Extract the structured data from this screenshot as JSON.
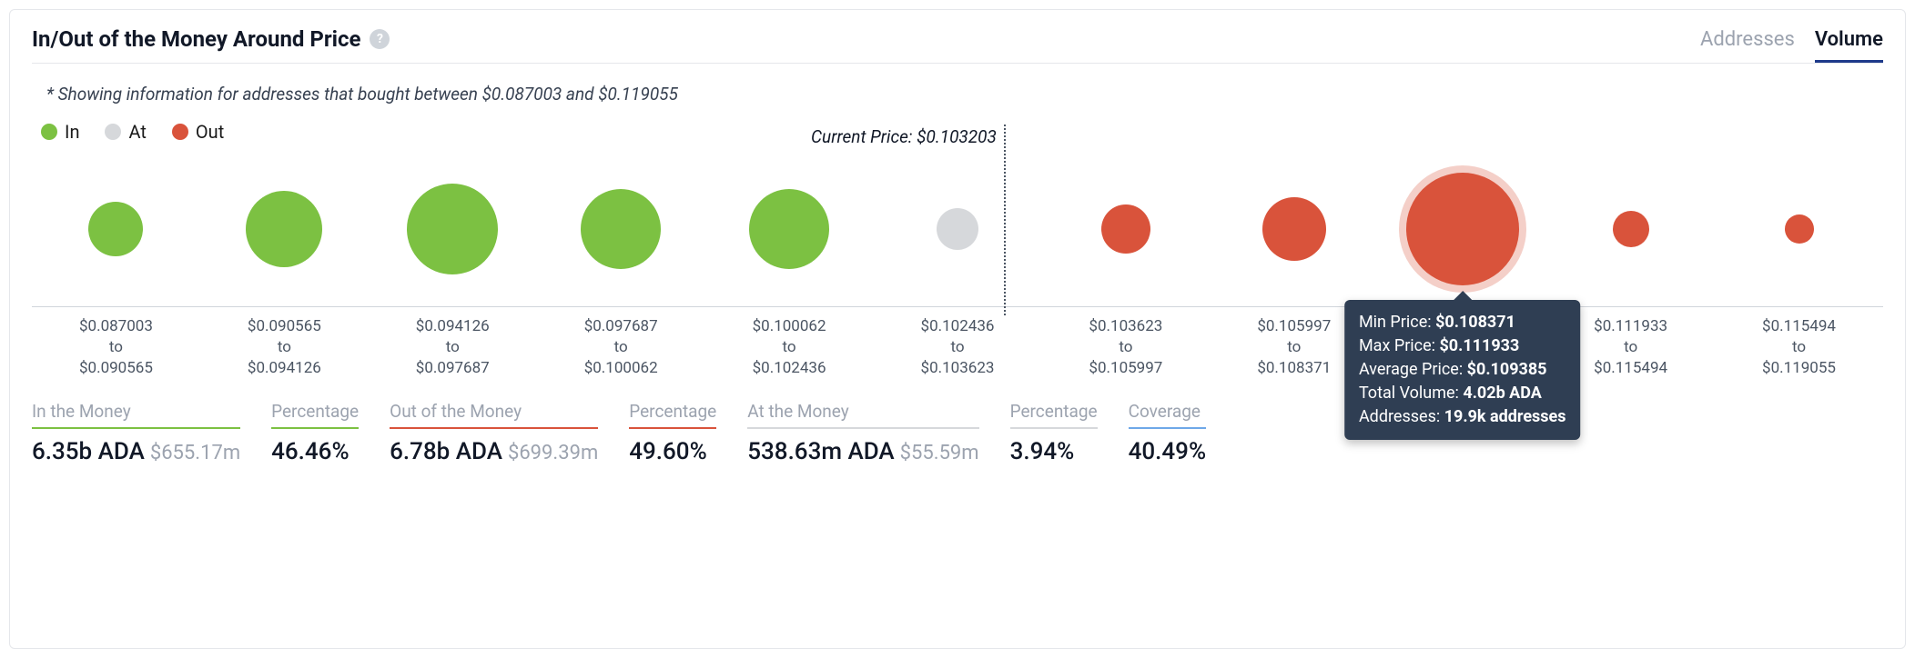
{
  "title": "In/Out of the Money Around Price",
  "tabs": {
    "inactive": "Addresses",
    "active": "Volume"
  },
  "subtitle": "* Showing information for addresses that bought between $0.087003 and $0.119055",
  "legend": {
    "in": {
      "label": "In",
      "color": "#7cc142"
    },
    "at": {
      "label": "At",
      "color": "#d6d8db"
    },
    "out": {
      "label": "Out",
      "color": "#d9533b"
    }
  },
  "current_price_label": "Current Price: $0.103203",
  "colors": {
    "in": "#7cc142",
    "at": "#d6d8db",
    "out": "#d9533b",
    "tooltip_bg": "#2f3e53",
    "grid": "#d1d5db"
  },
  "chart": {
    "divider_after_index": 4,
    "current_price_x_pct": 52.5,
    "bubbles": [
      {
        "range_from": "$0.087003",
        "range_to": "$0.090565",
        "cat": "in",
        "size": 60,
        "highlight": false
      },
      {
        "range_from": "$0.090565",
        "range_to": "$0.094126",
        "cat": "in",
        "size": 84,
        "highlight": false
      },
      {
        "range_from": "$0.094126",
        "range_to": "$0.097687",
        "cat": "in",
        "size": 100,
        "highlight": false
      },
      {
        "range_from": "$0.097687",
        "range_to": "$0.100062",
        "cat": "in",
        "size": 88,
        "highlight": false
      },
      {
        "range_from": "$0.100062",
        "range_to": "$0.102436",
        "cat": "in",
        "size": 88,
        "highlight": false
      },
      {
        "range_from": "$0.102436",
        "range_to": "$0.103623",
        "cat": "at",
        "size": 46,
        "highlight": false
      },
      {
        "range_from": "$0.103623",
        "range_to": "$0.105997",
        "cat": "out",
        "size": 54,
        "highlight": false
      },
      {
        "range_from": "$0.105997",
        "range_to": "$0.108371",
        "cat": "out",
        "size": 70,
        "highlight": false
      },
      {
        "range_from": "$0.108371",
        "range_to": "$0.111933",
        "cat": "out",
        "size": 124,
        "highlight": true
      },
      {
        "range_from": "$0.111933",
        "range_to": "$0.115494",
        "cat": "out",
        "size": 40,
        "highlight": false
      },
      {
        "range_from": "$0.115494",
        "range_to": "$0.119055",
        "cat": "out",
        "size": 32,
        "highlight": false
      }
    ]
  },
  "tooltip": {
    "bubble_index": 8,
    "rows": [
      {
        "label": "Min Price: ",
        "value": "$0.108371"
      },
      {
        "label": "Max Price: ",
        "value": "$0.111933"
      },
      {
        "label": "Average Price: ",
        "value": "$0.109385"
      },
      {
        "label": "Total Volume: ",
        "value": "4.02b ADA"
      },
      {
        "label": "Addresses: ",
        "value": "19.9k addresses"
      }
    ]
  },
  "summary": [
    {
      "label": "In the Money",
      "value": "6.35b ADA",
      "sub": "$655.17m",
      "underline": "#7cc142"
    },
    {
      "label": "Percentage",
      "value": "46.46%",
      "sub": "",
      "underline": "#7cc142"
    },
    {
      "label": "Out of the Money",
      "value": "6.78b ADA",
      "sub": "$699.39m",
      "underline": "#d9533b"
    },
    {
      "label": "Percentage",
      "value": "49.60%",
      "sub": "",
      "underline": "#d9533b"
    },
    {
      "label": "At the Money",
      "value": "538.63m ADA",
      "sub": "$55.59m",
      "underline": "#d6d8db"
    },
    {
      "label": "Percentage",
      "value": "3.94%",
      "sub": "",
      "underline": "#d6d8db"
    },
    {
      "label": "Coverage",
      "value": "40.49%",
      "sub": "",
      "underline": "#6ea8e8"
    }
  ]
}
